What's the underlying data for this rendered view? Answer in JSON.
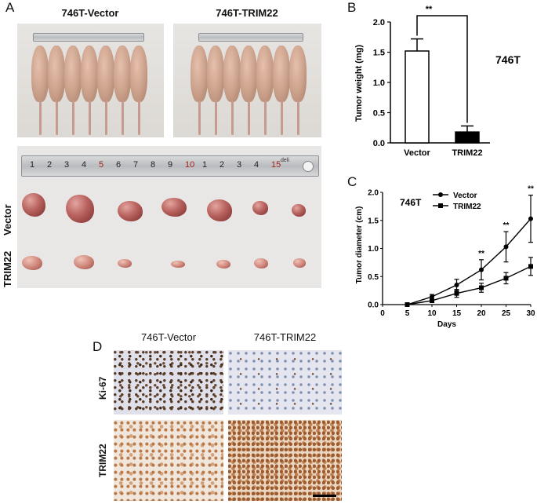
{
  "panelA": {
    "letter": "A",
    "left_caption": "746T-Vector",
    "right_caption": "746T-TRIM22",
    "row_label_vector": "Vector",
    "row_label_trim": "TRIM22",
    "ruler_numbers": [
      "1",
      "2",
      "3",
      "4",
      "5",
      "6",
      "7",
      "8",
      "9",
      "10",
      "1",
      "2",
      "3",
      "4",
      "15"
    ],
    "ruler_brand": "deli"
  },
  "panelB": {
    "letter": "B",
    "cell_line": "746T",
    "significance": "**"
  },
  "panelC": {
    "letter": "C",
    "cell_line": "746T",
    "significance": [
      "**",
      "**",
      "**"
    ]
  },
  "panelD": {
    "letter": "D",
    "col_vector": "746T-Vector",
    "col_trim": "746T-TRIM22",
    "row_ki67": "Ki-67",
    "row_trim22": "TRIM22"
  },
  "chart_data": [
    {
      "type": "bar",
      "categories": [
        "Vector",
        "TRIM22"
      ],
      "values": [
        1.52,
        0.18
      ],
      "errors": [
        0.2,
        0.1
      ],
      "fill": [
        "#ffffff",
        "#000000"
      ],
      "ylabel": "Tumor weight (mg)",
      "ylim": [
        0,
        2.0
      ],
      "yticks": [
        "0.0",
        "0.5",
        "1.0",
        "1.5",
        "2.0"
      ]
    },
    {
      "type": "line",
      "x": [
        0,
        5,
        10,
        15,
        20,
        25,
        30
      ],
      "xticks": [
        "0",
        "5",
        "10",
        "15",
        "20",
        "25",
        "30"
      ],
      "yticks": [
        "0.0",
        "0.5",
        "1.0",
        "1.5",
        "2.0"
      ],
      "series": [
        {
          "name": "Vector",
          "marker": "circle",
          "values": [
            null,
            0,
            0.14,
            0.35,
            0.62,
            1.03,
            1.53
          ],
          "errors": [
            null,
            0.02,
            0.04,
            0.1,
            0.18,
            0.27,
            0.42
          ]
        },
        {
          "name": "TRIM22",
          "marker": "square",
          "values": [
            null,
            0,
            0.07,
            0.2,
            0.3,
            0.47,
            0.68
          ],
          "errors": [
            null,
            0.02,
            0.03,
            0.07,
            0.08,
            0.1,
            0.16
          ]
        }
      ],
      "xlabel": "Days",
      "ylabel": "Tumor diameter (cm)",
      "ylim": [
        0,
        2.0
      ],
      "xlim": [
        0,
        30
      ],
      "legend": "top-left"
    }
  ]
}
